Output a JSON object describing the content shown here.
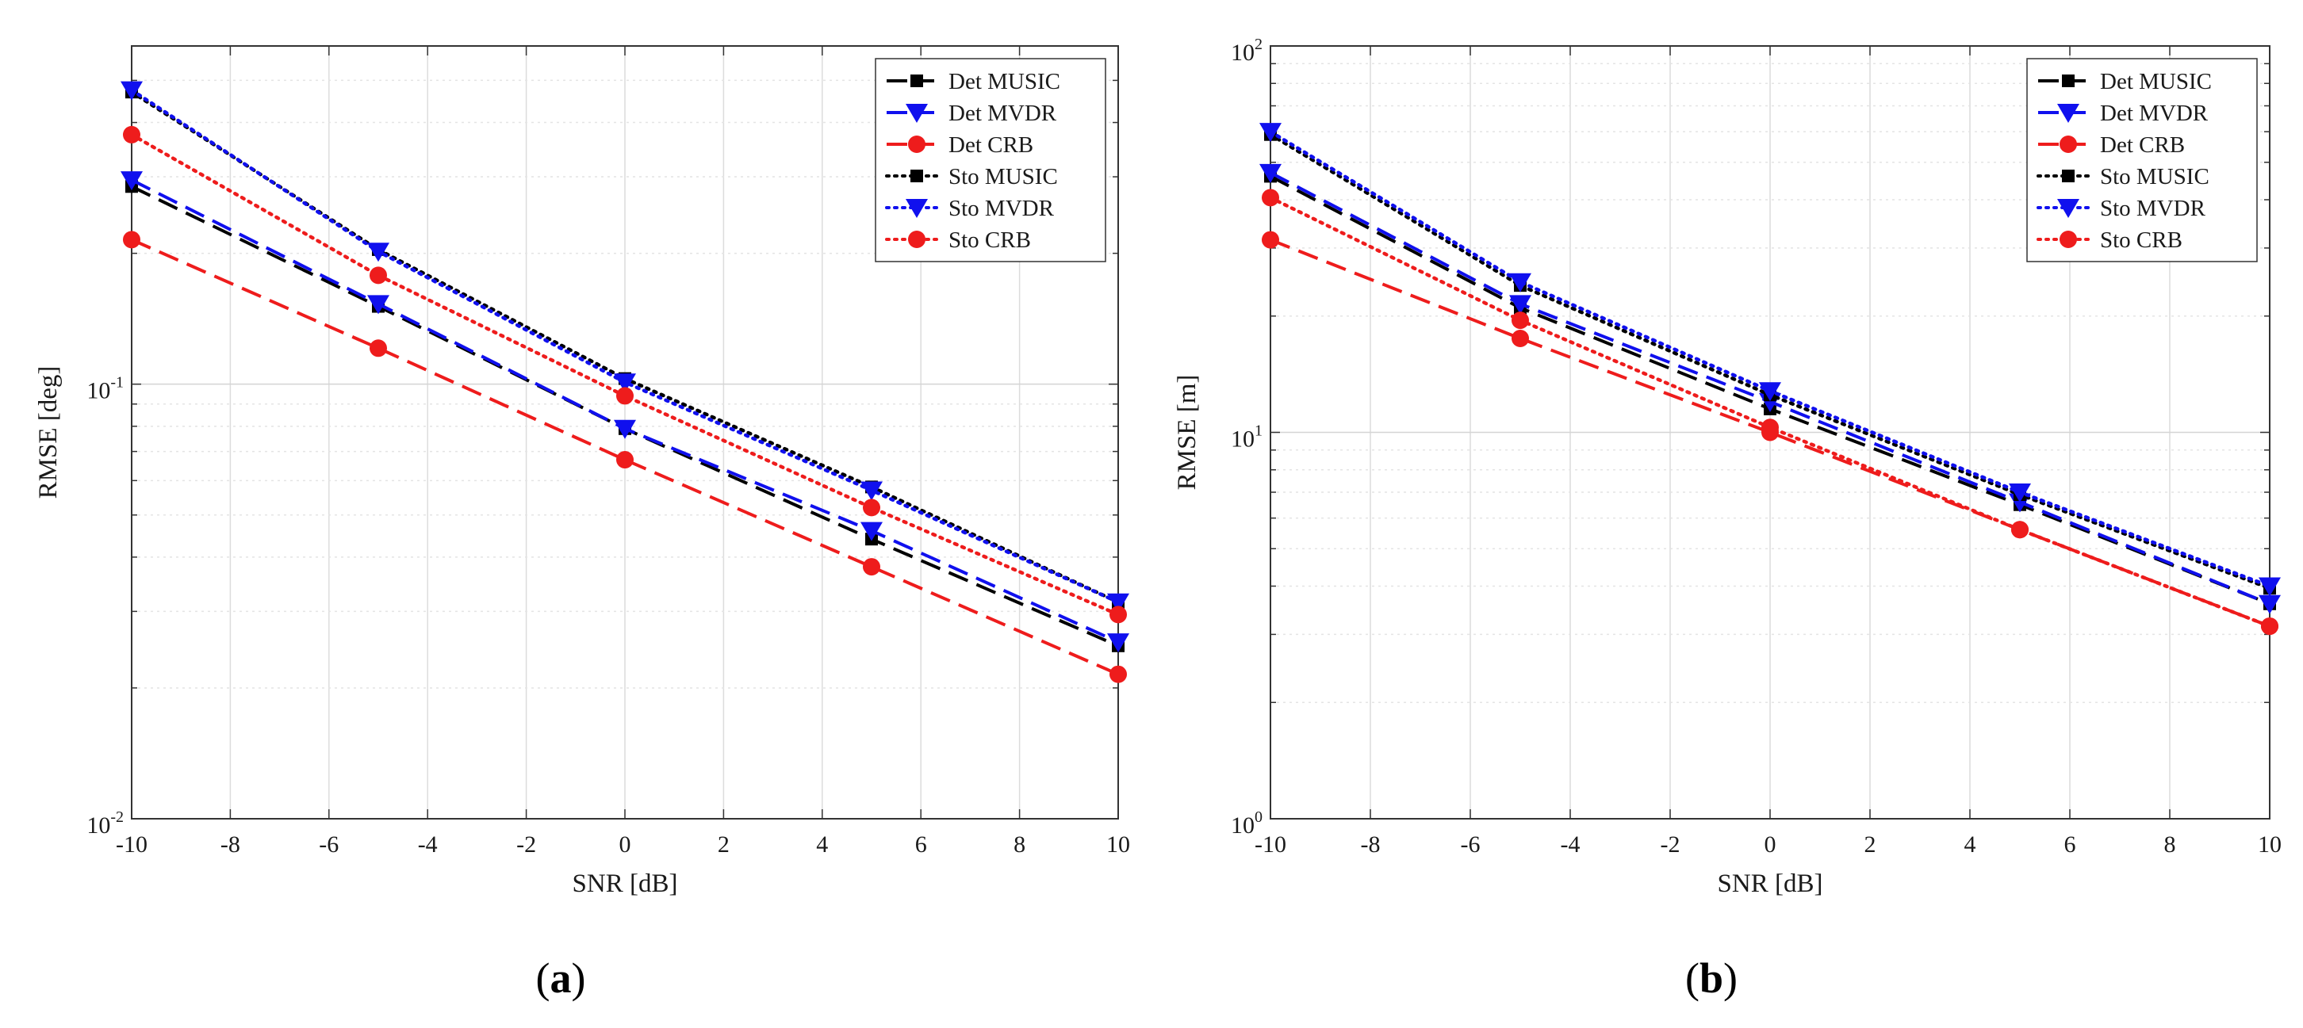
{
  "chart_data": [
    {
      "type": "line",
      "panel_label": "a",
      "xlabel": "SNR [dB]",
      "ylabel": "RMSE [deg]",
      "xlim": [
        -10,
        10
      ],
      "xticks": [
        -10,
        -8,
        -6,
        -4,
        -2,
        0,
        2,
        4,
        6,
        8,
        10
      ],
      "yscale": "log",
      "ylim": [
        0.01,
        0.6
      ],
      "ytick_labels": [
        {
          "value": 0.1,
          "base": "10",
          "exp": "-1"
        },
        {
          "value": 0.01,
          "base": "10",
          "exp": "-2"
        }
      ],
      "grid": true,
      "legend_position": "top-right",
      "x": [
        -10,
        -5,
        0,
        5,
        10
      ],
      "series": [
        {
          "name": "Det MUSIC",
          "color": "#000000",
          "style": "dashed",
          "marker": "square",
          "values": [
            0.285,
            0.151,
            0.079,
            0.044,
            0.025
          ]
        },
        {
          "name": "Det MVDR",
          "color": "#1010ee",
          "style": "dashed",
          "marker": "triangle-down",
          "values": [
            0.295,
            0.153,
            0.079,
            0.046,
            0.0255
          ]
        },
        {
          "name": "Det CRB",
          "color": "#ee1c1c",
          "style": "dashed",
          "marker": "circle",
          "values": [
            0.215,
            0.121,
            0.067,
            0.038,
            0.0215
          ]
        },
        {
          "name": "Sto MUSIC",
          "color": "#000000",
          "style": "dotted",
          "marker": "square",
          "values": [
            0.47,
            0.204,
            0.103,
            0.058,
            0.0315
          ]
        },
        {
          "name": "Sto MVDR",
          "color": "#1010ee",
          "style": "dotted",
          "marker": "triangle-down",
          "values": [
            0.475,
            0.202,
            0.101,
            0.057,
            0.0315
          ]
        },
        {
          "name": "Sto CRB",
          "color": "#ee1c1c",
          "style": "dotted",
          "marker": "circle",
          "values": [
            0.375,
            0.178,
            0.094,
            0.052,
            0.0295
          ]
        }
      ]
    },
    {
      "type": "line",
      "panel_label": "b",
      "xlabel": "SNR [dB]",
      "ylabel": "RMSE [m]",
      "xlim": [
        -10,
        10
      ],
      "xticks": [
        -10,
        -8,
        -6,
        -4,
        -2,
        0,
        2,
        4,
        6,
        8,
        10
      ],
      "yscale": "log",
      "ylim": [
        1,
        100
      ],
      "ytick_labels": [
        {
          "value": 100,
          "base": "10",
          "exp": "2"
        },
        {
          "value": 10,
          "base": "10",
          "exp": "1"
        },
        {
          "value": 1,
          "base": "10",
          "exp": "0"
        }
      ],
      "grid": true,
      "legend_position": "top-right",
      "x": [
        -10,
        -5,
        0,
        5,
        10
      ],
      "series": [
        {
          "name": "Det MUSIC",
          "color": "#000000",
          "style": "dashed",
          "marker": "square",
          "values": [
            46,
            21,
            11.5,
            6.5,
            3.6
          ]
        },
        {
          "name": "Det MVDR",
          "color": "#1010ee",
          "style": "dashed",
          "marker": "triangle-down",
          "values": [
            47,
            21.5,
            12,
            6.6,
            3.6
          ]
        },
        {
          "name": "Det CRB",
          "color": "#ee1c1c",
          "style": "dashed",
          "marker": "circle",
          "values": [
            31.5,
            17.5,
            10,
            5.6,
            3.15
          ]
        },
        {
          "name": "Sto MUSIC",
          "color": "#000000",
          "style": "dotted",
          "marker": "square",
          "values": [
            59,
            24,
            12.5,
            6.9,
            3.95
          ]
        },
        {
          "name": "Sto MVDR",
          "color": "#1010ee",
          "style": "dotted",
          "marker": "triangle-down",
          "values": [
            60,
            24.5,
            12.8,
            7.0,
            4.0
          ]
        },
        {
          "name": "Sto CRB",
          "color": "#ee1c1c",
          "style": "dotted",
          "marker": "circle",
          "values": [
            40.5,
            19.5,
            10.3,
            5.6,
            3.15
          ]
        }
      ]
    }
  ]
}
